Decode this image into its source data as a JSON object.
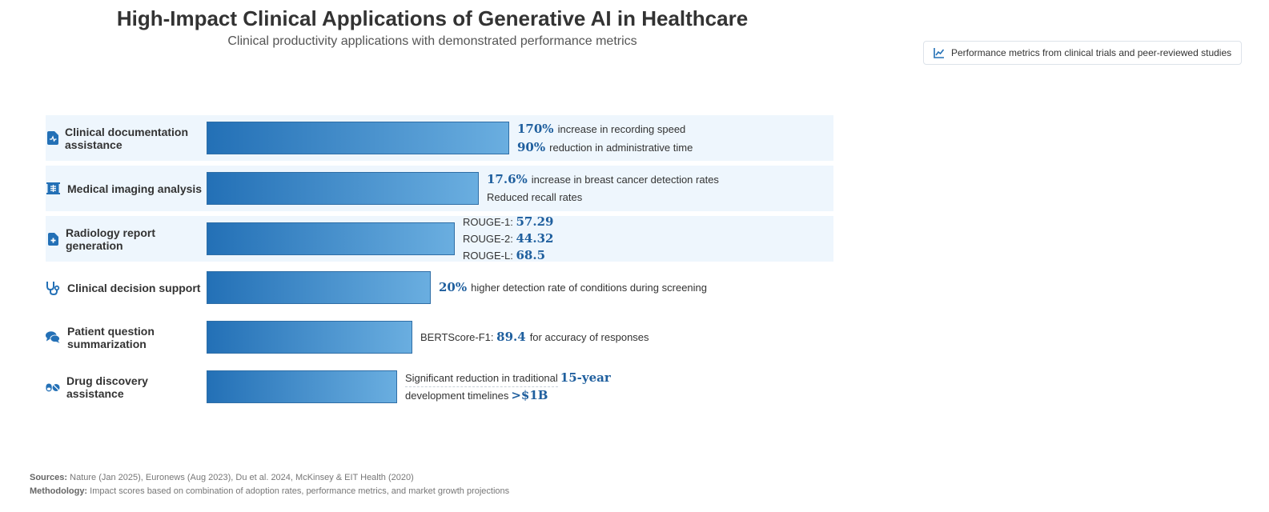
{
  "title": "High-Impact Clinical Applications of Generative AI in Healthcare",
  "subtitle": "Clinical productivity applications with demonstrated performance metrics",
  "note": "Performance metrics from clinical trials and peer-reviewed studies",
  "chart_data": {
    "type": "bar",
    "orientation": "horizontal",
    "categories": [
      "Clinical documentation assistance",
      "Medical imaging analysis",
      "Radiology report generation",
      "Clinical decision support",
      "Patient question summarization",
      "Drug discovery assistance"
    ],
    "impact_relative": [
      1.0,
      0.9,
      0.82,
      0.74,
      0.68,
      0.63
    ],
    "icons": [
      "file-medical-icon",
      "x-ray-icon",
      "file-medical-plus-icon",
      "stethoscope-icon",
      "comments-icon",
      "pills-icon"
    ],
    "highlighted_rows": [
      0,
      1,
      2
    ]
  },
  "rows": [
    {
      "label": "Clinical documentation assistance",
      "m1_value": "170%",
      "m1_text": "increase in recording speed",
      "m2_value": "90%",
      "m2_text": "reduction in administrative time"
    },
    {
      "label": "Medical imaging analysis",
      "m1_value": "17.6%",
      "m1_text": "increase in breast cancer detection rates",
      "m2_text": "Reduced recall rates"
    },
    {
      "label": "Radiology report generation",
      "m1_prefix": "ROUGE-1:",
      "m1_value": "57.29",
      "m2_prefix": "ROUGE-2:",
      "m2_value": "44.32",
      "m3_prefix": "ROUGE-L:",
      "m3_value": "68.5"
    },
    {
      "label": "Clinical decision support",
      "m1_value": "20%",
      "m1_text": "higher detection rate of conditions during screening"
    },
    {
      "label": "Patient question summarization",
      "m1_prefix": "BERTScore-F1:",
      "m1_value": "89.4",
      "m1_text": "for accuracy of responses"
    },
    {
      "label": "Drug discovery assistance",
      "m1_text": "Significant reduction in traditional",
      "m1_value": "15-year",
      "m2_text": "development timelines",
      "m2_value": ">$1B"
    }
  ],
  "sources_label": "Sources:",
  "sources_text": "Nature (Jan 2025), Euronews (Aug 2023), Du et al. 2024, McKinsey & EIT Health (2020)",
  "methodology_label": "Methodology:",
  "methodology_text": "Impact scores based on combination of adoption rates, performance metrics, and market growth projections",
  "colors": {
    "bar_start": "#2370b6",
    "bar_end": "#6aaee0",
    "value": "#1f5f9e",
    "highlight_bg": "#eef6fd"
  }
}
